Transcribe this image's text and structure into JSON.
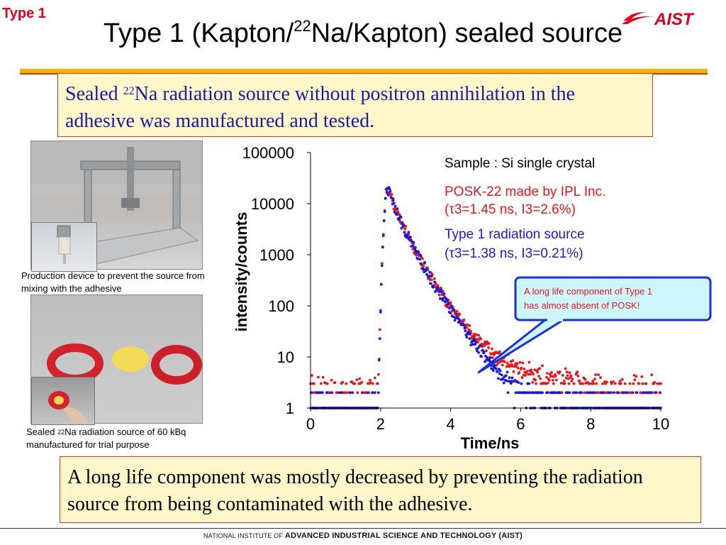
{
  "slide_tag": "Type 1",
  "logo_text": "AIST",
  "title": {
    "part1": "Type 1 (Kapton/",
    "sup": "22",
    "part2": "Na/Kapton) sealed source"
  },
  "top_box": {
    "part1": "Sealed ",
    "sup": "22",
    "part2": "Na radiation source without positron annihilation in the adhesive was manufactured and tested."
  },
  "photo_captions": {
    "production_device": "Production device  to prevent the source from mixing with the adhesive",
    "sealed_source_part1": "Sealed ",
    "sealed_source_sup": "22",
    "sealed_source_part2": "Na radiation source of 60 kBq manufactured for trial purpose"
  },
  "bottom_box": "A long life component was mostly decreased by preventing the radiation source from being contaminated with the adhesive.",
  "footer": {
    "prefix": "NATIONAL INSTITUTE OF ",
    "name": "ADVANCED INDUSTRIAL SCIENCE AND TECHNOLOGY (AIST)"
  },
  "chart_data": {
    "type": "scatter",
    "title": "",
    "xlabel": "Time/ns",
    "ylabel": "intensity/counts",
    "xlim": [
      0,
      10
    ],
    "ylim": [
      1,
      100000
    ],
    "yscale": "log",
    "x_ticks": [
      "0",
      "2",
      "4",
      "6",
      "8",
      "10"
    ],
    "y_ticks": [
      "1",
      "10",
      "100",
      "1000",
      "10000",
      "100000"
    ],
    "grid": false,
    "legend": {
      "placement": "top-right",
      "sample_label": "Sample : Si single crystal",
      "entries": [
        {
          "line1": "POSK-22 made by IPL Inc.",
          "line2": "(τ3=1.45 ns, I3=2.6%)",
          "color": "#e8141c"
        },
        {
          "line1": "Type 1 radiation source",
          "line2": "(τ3=1.38 ns, I3=0.21%)",
          "color": "#1a1ad6"
        }
      ]
    },
    "annotation": {
      "text_line1": "A long life component of Type 1",
      "text_line2": "has almost absent of POSK!",
      "points_to": {
        "x": 4.8,
        "y": 5
      }
    },
    "series": [
      {
        "name": "POSK-22 made by IPL Inc.",
        "color": "#e8141c",
        "peak_x": 2.2,
        "peak_y": 20000,
        "lifetimes_ns": [
          0.22,
          0.43,
          1.45
        ],
        "background": 2,
        "x": [
          0.0,
          0.5,
          1.0,
          1.5,
          1.8,
          2.0,
          2.1,
          2.2,
          2.4,
          2.6,
          2.8,
          3.0,
          3.2,
          3.5,
          3.8,
          4.0,
          4.2,
          4.5,
          5.0,
          5.5,
          6.0,
          7.0,
          8.0,
          9.0,
          10.0
        ],
        "y": [
          1,
          1,
          2,
          2,
          3,
          100,
          3500,
          20000,
          11000,
          5000,
          2100,
          900,
          450,
          200,
          100,
          70,
          50,
          30,
          15,
          8,
          5,
          3,
          2,
          2,
          2
        ]
      },
      {
        "name": "Type 1 radiation source",
        "color": "#1a1ad6",
        "peak_x": 2.2,
        "peak_y": 20000,
        "lifetimes_ns": [
          0.22,
          0.43,
          1.38
        ],
        "background": 1,
        "x": [
          0.0,
          0.5,
          1.0,
          1.5,
          1.8,
          2.0,
          2.1,
          2.2,
          2.4,
          2.6,
          2.8,
          3.0,
          3.2,
          3.5,
          3.8,
          4.0,
          4.2,
          4.5,
          5.0,
          5.5,
          6.0,
          7.0,
          8.0,
          9.0,
          10.0
        ],
        "y": [
          1,
          1,
          2,
          2,
          3,
          100,
          3500,
          20000,
          10000,
          4500,
          1800,
          700,
          300,
          100,
          40,
          20,
          12,
          6,
          3,
          2,
          2,
          1,
          1,
          1,
          1
        ]
      }
    ]
  }
}
